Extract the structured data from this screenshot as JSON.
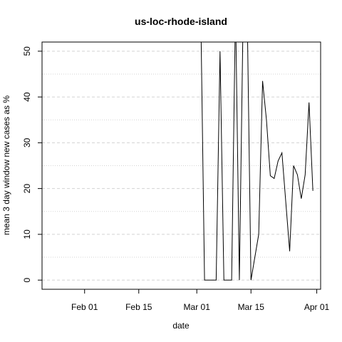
{
  "chart_data": {
    "type": "line",
    "title": "us-loc-rhode-island",
    "xlabel": "date",
    "ylabel": "mean  3  day window new cases as %",
    "x_ticks": [
      {
        "date": "2020-02-01",
        "label": "Feb 01"
      },
      {
        "date": "2020-02-15",
        "label": "Feb 15"
      },
      {
        "date": "2020-03-01",
        "label": "Mar 01"
      },
      {
        "date": "2020-03-15",
        "label": "Mar 15"
      },
      {
        "date": "2020-04-01",
        "label": "Apr 01"
      }
    ],
    "y_ticks": [
      0,
      10,
      20,
      30,
      40,
      50
    ],
    "xlim": [
      "2020-01-21",
      "2020-04-02"
    ],
    "ylim": [
      -2,
      52
    ],
    "grid": "horizontal dashed",
    "series": [
      {
        "color": "#000000",
        "points": [
          {
            "x": "2020-03-02",
            "y": 60
          },
          {
            "x": "2020-03-03",
            "y": 0
          },
          {
            "x": "2020-03-04",
            "y": 0
          },
          {
            "x": "2020-03-05",
            "y": 0
          },
          {
            "x": "2020-03-06",
            "y": 0
          },
          {
            "x": "2020-03-07",
            "y": 50
          },
          {
            "x": "2020-03-08",
            "y": 0
          },
          {
            "x": "2020-03-09",
            "y": 0
          },
          {
            "x": "2020-03-10",
            "y": 0
          },
          {
            "x": "2020-03-11",
            "y": 60
          },
          {
            "x": "2020-03-12",
            "y": 0
          },
          {
            "x": "2020-03-13",
            "y": 60
          },
          {
            "x": "2020-03-14",
            "y": 60
          },
          {
            "x": "2020-03-15",
            "y": 0
          },
          {
            "x": "2020-03-16",
            "y": 5
          },
          {
            "x": "2020-03-17",
            "y": 10
          },
          {
            "x": "2020-03-18",
            "y": 43.5
          },
          {
            "x": "2020-03-19",
            "y": 35
          },
          {
            "x": "2020-03-20",
            "y": 22.8
          },
          {
            "x": "2020-03-21",
            "y": 22.2
          },
          {
            "x": "2020-03-22",
            "y": 26
          },
          {
            "x": "2020-03-23",
            "y": 27.8
          },
          {
            "x": "2020-03-24",
            "y": 17
          },
          {
            "x": "2020-03-25",
            "y": 6.3
          },
          {
            "x": "2020-03-26",
            "y": 25
          },
          {
            "x": "2020-03-27",
            "y": 23
          },
          {
            "x": "2020-03-28",
            "y": 17.8
          },
          {
            "x": "2020-03-29",
            "y": 23
          },
          {
            "x": "2020-03-30",
            "y": 38.8
          },
          {
            "x": "2020-03-31",
            "y": 19.5
          }
        ]
      }
    ]
  }
}
